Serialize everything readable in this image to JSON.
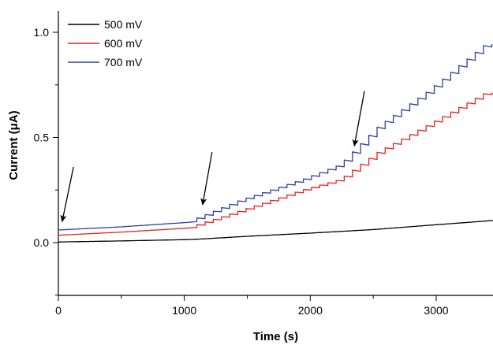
{
  "chart_data": {
    "type": "line",
    "title": "",
    "xlabel": "Time (s)",
    "ylabel": "Current (μA)",
    "xlim": [
      0,
      3450
    ],
    "ylim": [
      -0.25,
      1.1
    ],
    "xticks": [
      0,
      1000,
      2000,
      3000
    ],
    "xtick_labels": [
      "0",
      "1000",
      "2000",
      "3000"
    ],
    "yticks": [
      0.0,
      0.5,
      1.0
    ],
    "ytick_labels": [
      "0.0",
      "0.5",
      "1.0"
    ],
    "grid": false,
    "legend_position": "top-left",
    "series": [
      {
        "name": "500 mV",
        "color": "#000000",
        "points": [
          [
            0,
            0.003
          ],
          [
            500,
            0.008
          ],
          [
            1000,
            0.014
          ],
          [
            1100,
            0.016
          ],
          [
            1500,
            0.03
          ],
          [
            2000,
            0.045
          ],
          [
            2500,
            0.062
          ],
          [
            3000,
            0.085
          ],
          [
            3450,
            0.105
          ]
        ]
      },
      {
        "name": "600 mV",
        "color": "#e8211e",
        "step_start": 1100,
        "step_interval": 65,
        "points": [
          [
            0,
            0.035
          ],
          [
            500,
            0.05
          ],
          [
            1000,
            0.068
          ],
          [
            1100,
            0.072
          ],
          [
            1500,
            0.15
          ],
          [
            2000,
            0.25
          ],
          [
            2300,
            0.3
          ],
          [
            2600,
            0.43
          ],
          [
            3000,
            0.56
          ],
          [
            3450,
            0.71
          ]
        ]
      },
      {
        "name": "700 mV",
        "color": "#2e3f9e",
        "step_start": 1100,
        "step_interval": 65,
        "points": [
          [
            0,
            0.06
          ],
          [
            500,
            0.075
          ],
          [
            1000,
            0.095
          ],
          [
            1100,
            0.1
          ],
          [
            1500,
            0.2
          ],
          [
            2000,
            0.3
          ],
          [
            2300,
            0.37
          ],
          [
            2600,
            0.55
          ],
          [
            3000,
            0.72
          ],
          [
            3450,
            0.94
          ]
        ]
      }
    ],
    "annotations": [
      {
        "type": "arrow",
        "from": [
          120,
          0.36
        ],
        "to": [
          30,
          0.1
        ]
      },
      {
        "type": "arrow",
        "from": [
          1220,
          0.43
        ],
        "to": [
          1145,
          0.18
        ]
      },
      {
        "type": "arrow",
        "from": [
          2430,
          0.72
        ],
        "to": [
          2350,
          0.46
        ]
      }
    ]
  }
}
